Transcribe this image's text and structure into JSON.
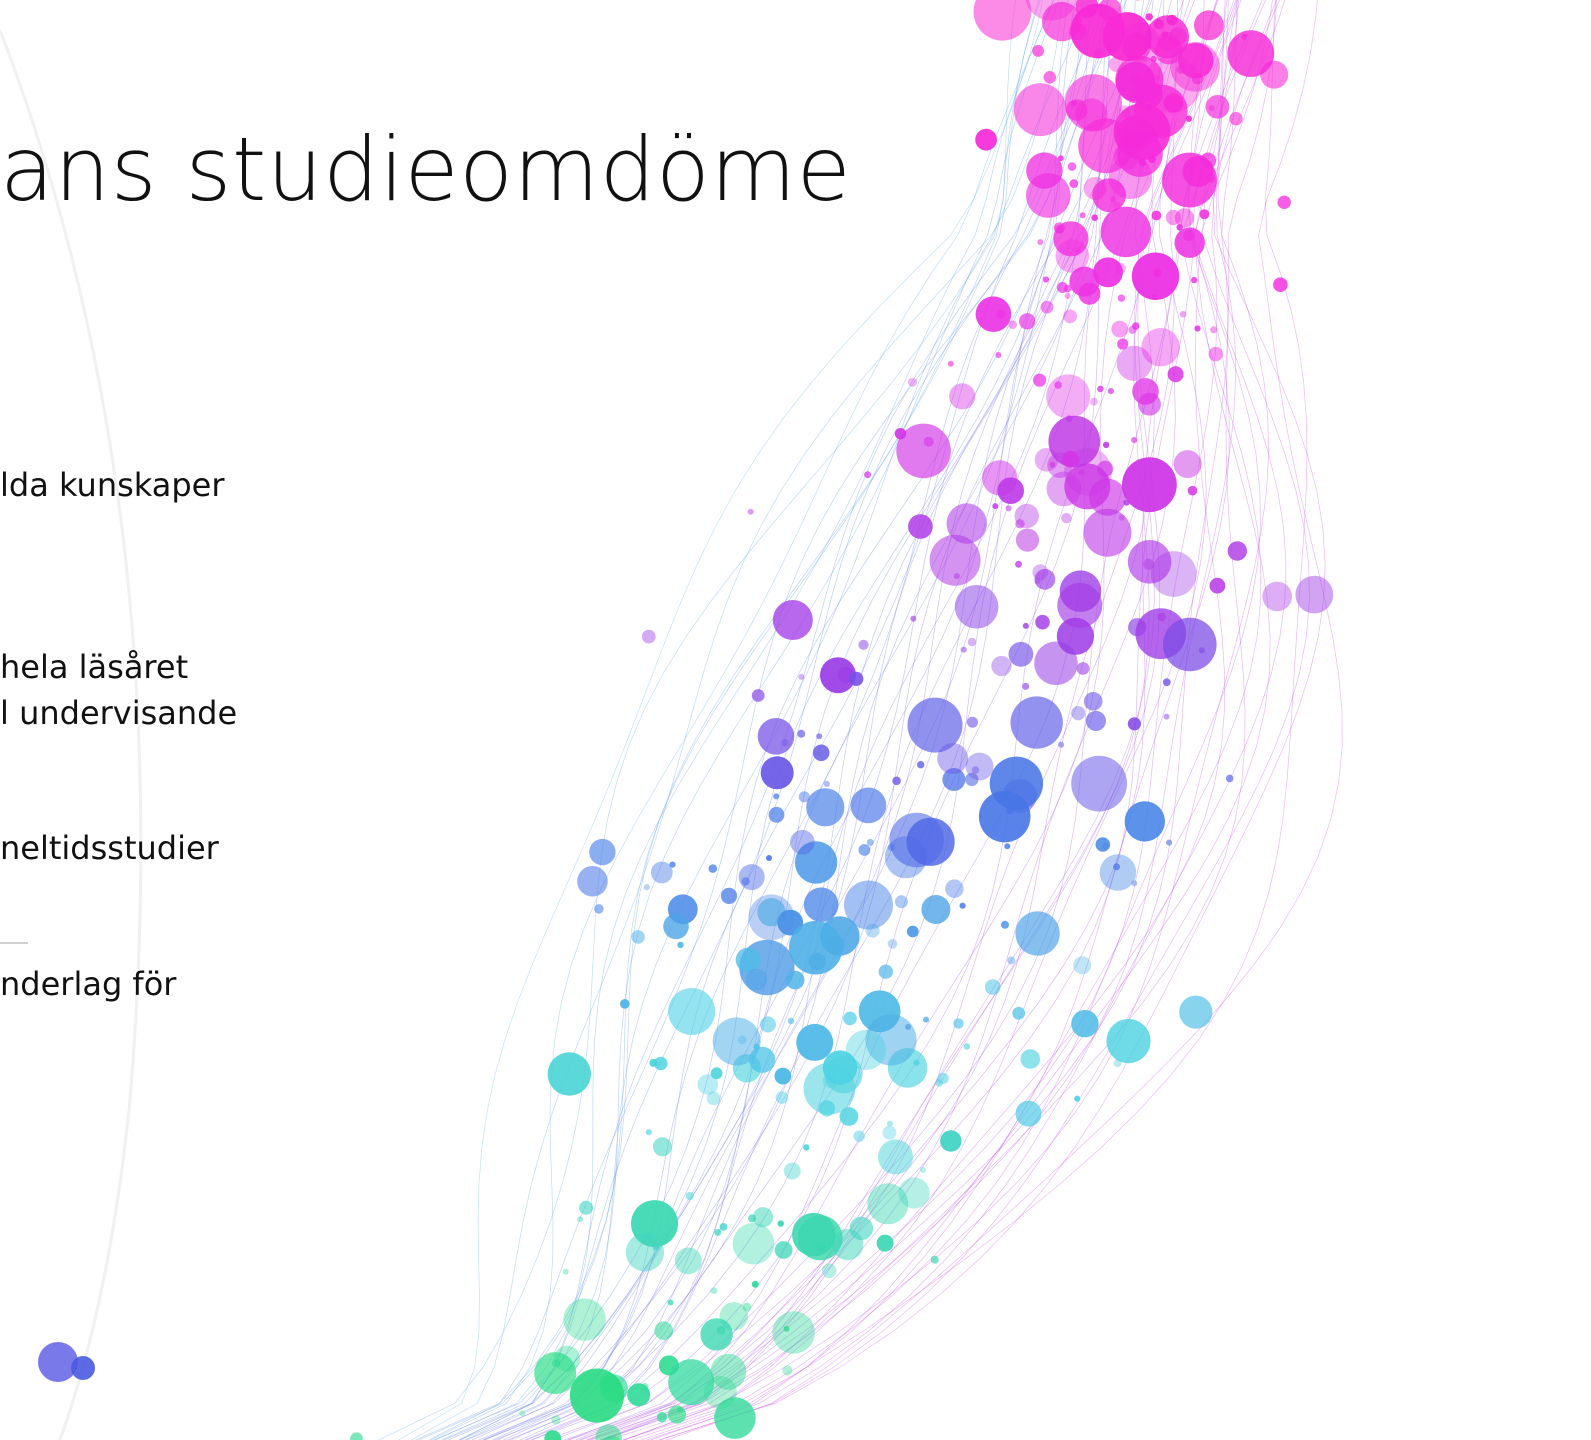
{
  "title": "ans studieomdöme",
  "lines": [
    "lda kunskaper",
    "hela läsåret",
    "l undervisande",
    "neltidsstudier",
    "nderlag för"
  ]
}
